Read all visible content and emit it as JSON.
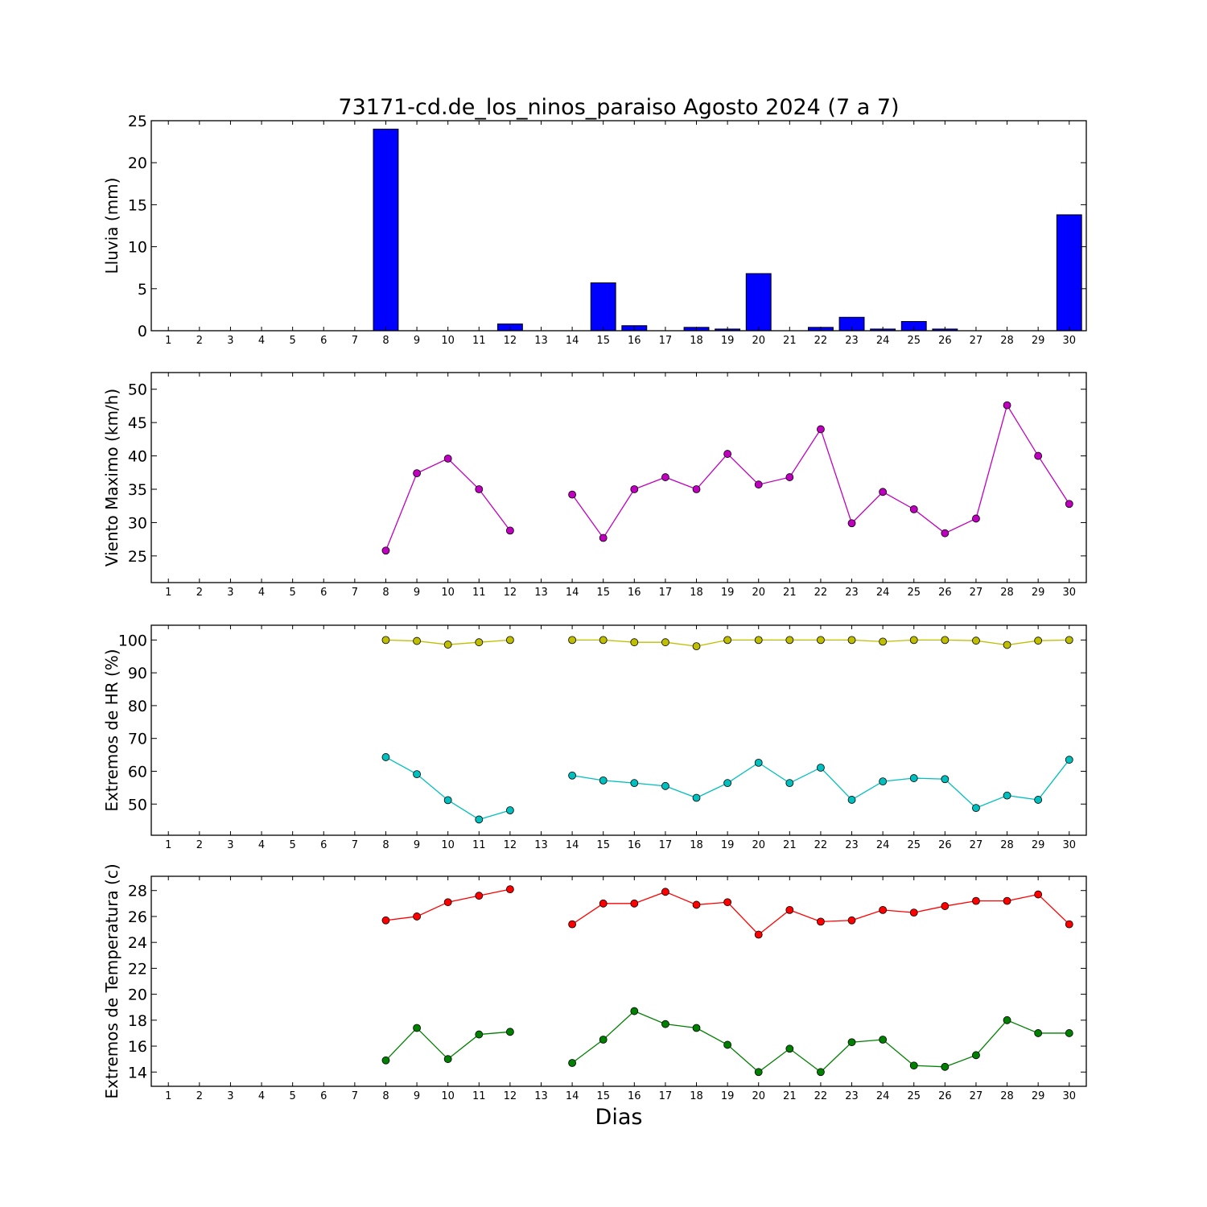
{
  "title": "73171-cd.de_los_ninos_paraiso Agosto 2024  (7 a 7)",
  "xlabel": "Dias",
  "chart_data": [
    {
      "type": "bar",
      "ylabel": "Lluvia (mm)",
      "ylim": [
        0,
        25
      ],
      "yticks": [
        0,
        5,
        10,
        15,
        20,
        25
      ],
      "categories": [
        1,
        2,
        3,
        4,
        5,
        6,
        7,
        8,
        9,
        10,
        11,
        12,
        13,
        14,
        15,
        16,
        17,
        18,
        19,
        20,
        21,
        22,
        23,
        24,
        25,
        26,
        27,
        28,
        29,
        30
      ],
      "values": [
        0,
        0,
        0,
        0,
        0,
        0,
        0,
        24,
        0,
        0,
        0,
        0.8,
        0,
        0,
        5.7,
        0.6,
        0,
        0.4,
        0.2,
        6.8,
        0,
        0.4,
        1.6,
        0.2,
        1.1,
        0.2,
        0,
        0,
        0,
        13.8
      ],
      "color": "#0000ff"
    },
    {
      "type": "line",
      "ylabel": "Viento Maximo (km/h)",
      "ylim": [
        21,
        52.5
      ],
      "yticks": [
        25,
        30,
        35,
        40,
        45,
        50
      ],
      "categories": [
        1,
        2,
        3,
        4,
        5,
        6,
        7,
        8,
        9,
        10,
        11,
        12,
        13,
        14,
        15,
        16,
        17,
        18,
        19,
        20,
        21,
        22,
        23,
        24,
        25,
        26,
        27,
        28,
        29,
        30
      ],
      "series": [
        {
          "color": "#bf00bf",
          "values": [
            null,
            null,
            null,
            null,
            null,
            null,
            null,
            25.8,
            37.4,
            39.6,
            35,
            28.8,
            null,
            34.2,
            27.7,
            35,
            36.8,
            35,
            40.3,
            35.7,
            36.8,
            44,
            29.9,
            34.6,
            32,
            28.4,
            30.6,
            47.6,
            40,
            32.8
          ]
        }
      ]
    },
    {
      "type": "line",
      "ylabel": "Extremos de HR (%)",
      "ylim": [
        40.5,
        104.5
      ],
      "yticks": [
        50,
        60,
        70,
        80,
        90,
        100
      ],
      "categories": [
        1,
        2,
        3,
        4,
        5,
        6,
        7,
        8,
        9,
        10,
        11,
        12,
        13,
        14,
        15,
        16,
        17,
        18,
        19,
        20,
        21,
        22,
        23,
        24,
        25,
        26,
        27,
        28,
        29,
        30
      ],
      "series": [
        {
          "color": "#bfbf00",
          "values": [
            null,
            null,
            null,
            null,
            null,
            null,
            null,
            100,
            99.7,
            98.6,
            99.3,
            100,
            null,
            100,
            100,
            99.3,
            99.3,
            98.1,
            100,
            100,
            100,
            100,
            100,
            99.5,
            100,
            100,
            99.8,
            98.5,
            99.8,
            100
          ]
        },
        {
          "color": "#00bfbf",
          "values": [
            null,
            null,
            null,
            null,
            null,
            null,
            null,
            64.3,
            59.1,
            51.2,
            45.3,
            48.1,
            null,
            58.7,
            57.2,
            56.4,
            55.5,
            51.9,
            56.4,
            62.6,
            56.4,
            61.1,
            51.3,
            56.9,
            57.9,
            57.6,
            48.8,
            52.6,
            51.3,
            63.5
          ]
        }
      ]
    },
    {
      "type": "line",
      "ylabel": "Extremos de Temperatura (c)",
      "ylim": [
        12.9,
        29.1
      ],
      "yticks": [
        14,
        16,
        18,
        20,
        22,
        24,
        26,
        28
      ],
      "categories": [
        1,
        2,
        3,
        4,
        5,
        6,
        7,
        8,
        9,
        10,
        11,
        12,
        13,
        14,
        15,
        16,
        17,
        18,
        19,
        20,
        21,
        22,
        23,
        24,
        25,
        26,
        27,
        28,
        29,
        30
      ],
      "series": [
        {
          "color": "#ff0000",
          "values": [
            null,
            null,
            null,
            null,
            null,
            null,
            null,
            25.7,
            26,
            27.1,
            27.6,
            28.1,
            null,
            25.4,
            27,
            27,
            27.9,
            26.9,
            27.1,
            24.6,
            26.5,
            25.6,
            25.7,
            26.5,
            26.3,
            26.8,
            27.2,
            27.2,
            27.7,
            25.4
          ]
        },
        {
          "color": "#008000",
          "values": [
            null,
            null,
            null,
            null,
            null,
            null,
            null,
            14.9,
            17.4,
            15,
            16.9,
            17.1,
            null,
            14.7,
            16.5,
            18.7,
            17.7,
            17.4,
            16.1,
            14,
            15.8,
            14,
            16.3,
            16.5,
            14.5,
            14.4,
            15.3,
            18,
            17,
            17
          ]
        }
      ]
    }
  ]
}
